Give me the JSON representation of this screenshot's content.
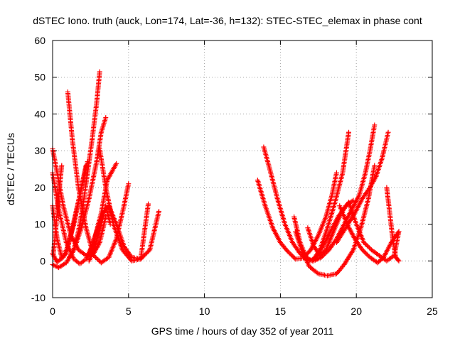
{
  "chart_data": {
    "type": "scatter",
    "title": "dSTEC Iono. truth (auck, Lon=174, Lat=-36, h=132): STEC-STEC_elemax in phase cont",
    "xlabel": "GPS time / hours of day 352 of year 2011",
    "ylabel": "dSTEC  / TECUs",
    "xlim": [
      0,
      25
    ],
    "ylim": [
      -10,
      60
    ],
    "xticks": [
      0,
      5,
      10,
      15,
      20,
      25
    ],
    "yticks": [
      -10,
      0,
      10,
      20,
      30,
      40,
      50,
      60
    ],
    "grid": true,
    "marker": "plus",
    "color": "#ff0000",
    "series": [
      {
        "points": [
          [
            0.0,
            30.5
          ],
          [
            0.3,
            24
          ],
          [
            0.7,
            15
          ],
          [
            1.2,
            7
          ],
          [
            1.7,
            3
          ],
          [
            2.2,
            1.5
          ],
          [
            2.7,
            2
          ],
          [
            3.1,
            5
          ],
          [
            3.5,
            12
          ]
        ]
      },
      {
        "points": [
          [
            0.0,
            24
          ],
          [
            0.4,
            14
          ],
          [
            0.9,
            5
          ],
          [
            1.4,
            0.5
          ],
          [
            1.8,
            -0.8
          ],
          [
            2.2,
            0.5
          ],
          [
            2.7,
            5
          ],
          [
            3.2,
            13
          ],
          [
            3.6,
            22
          ],
          [
            4.2,
            26.5
          ]
        ]
      },
      {
        "points": [
          [
            0.0,
            2
          ],
          [
            0.3,
            -0.3
          ],
          [
            0.7,
            1
          ],
          [
            1.0,
            4
          ],
          [
            1.4,
            10
          ],
          [
            1.8,
            18
          ],
          [
            2.3,
            27
          ]
        ]
      },
      {
        "points": [
          [
            0.0,
            -1
          ],
          [
            0.4,
            -1.8
          ],
          [
            0.9,
            -0.5
          ],
          [
            1.4,
            3
          ],
          [
            1.9,
            9
          ],
          [
            2.4,
            17
          ],
          [
            2.9,
            27
          ],
          [
            3.2,
            35
          ],
          [
            3.5,
            39
          ]
        ]
      },
      {
        "points": [
          [
            0.0,
            15
          ],
          [
            0.3,
            6
          ],
          [
            0.6,
            1
          ],
          [
            0.9,
            2
          ],
          [
            1.3,
            9
          ],
          [
            1.8,
            18
          ],
          [
            2.2,
            26
          ]
        ]
      },
      {
        "points": [
          [
            0.6,
            26
          ],
          [
            0.45,
            20
          ],
          [
            0.3,
            13
          ],
          [
            0.15,
            6
          ],
          [
            0.05,
            2
          ]
        ]
      },
      {
        "points": [
          [
            1.0,
            46
          ],
          [
            1.3,
            33
          ],
          [
            1.7,
            20
          ],
          [
            2.2,
            9
          ],
          [
            2.7,
            1.5
          ],
          [
            3.2,
            -0.5
          ],
          [
            3.7,
            1
          ],
          [
            4.2,
            6
          ],
          [
            4.7,
            15
          ],
          [
            5.0,
            21
          ]
        ]
      },
      {
        "points": [
          [
            3.1,
            51.5
          ],
          [
            2.9,
            43
          ],
          [
            2.6,
            33
          ],
          [
            2.3,
            24
          ],
          [
            2.0,
            15
          ],
          [
            1.7,
            8
          ],
          [
            1.4,
            3
          ],
          [
            1.1,
            1
          ]
        ]
      },
      {
        "points": [
          [
            3.1,
            30.5
          ],
          [
            3.5,
            20
          ],
          [
            4.0,
            10
          ],
          [
            4.6,
            3
          ],
          [
            5.2,
            0
          ],
          [
            5.8,
            0.5
          ],
          [
            6.4,
            3
          ],
          [
            7.0,
            13.5
          ]
        ]
      },
      {
        "points": [
          [
            2.5,
            3
          ],
          [
            2.9,
            8
          ],
          [
            3.3,
            13
          ],
          [
            3.7,
            15
          ],
          [
            4.2,
            10
          ],
          [
            4.7,
            4
          ],
          [
            5.2,
            1
          ],
          [
            5.8,
            0.5
          ],
          [
            6.3,
            15.5
          ]
        ]
      },
      {
        "points": [
          [
            2.4,
            0
          ],
          [
            2.8,
            4
          ],
          [
            3.2,
            10
          ],
          [
            3.5,
            15
          ],
          [
            3.8,
            10
          ]
        ]
      },
      {
        "points": [
          [
            13.5,
            22
          ],
          [
            14.0,
            15
          ],
          [
            14.5,
            9
          ],
          [
            15.0,
            5
          ],
          [
            15.5,
            2.5
          ],
          [
            16.0,
            0.5
          ],
          [
            16.5,
            0.8
          ],
          [
            17.0,
            3
          ],
          [
            17.5,
            7
          ],
          [
            18.0,
            12
          ],
          [
            18.4,
            18
          ],
          [
            18.7,
            24
          ]
        ]
      },
      {
        "points": [
          [
            13.9,
            31
          ],
          [
            14.3,
            25
          ],
          [
            14.8,
            17
          ],
          [
            15.3,
            10
          ],
          [
            15.8,
            5
          ],
          [
            16.3,
            2
          ],
          [
            16.8,
            0
          ],
          [
            17.3,
            0.5
          ],
          [
            17.8,
            4
          ],
          [
            18.3,
            8
          ],
          [
            18.8,
            12
          ],
          [
            19.3,
            15
          ],
          [
            19.8,
            16.5
          ]
        ]
      },
      {
        "points": [
          [
            16.0,
            8
          ],
          [
            16.4,
            3
          ],
          [
            16.9,
            -1.5
          ],
          [
            17.5,
            -3.5
          ],
          [
            18.1,
            -4
          ],
          [
            18.7,
            -3.5
          ],
          [
            19.2,
            -1
          ],
          [
            19.8,
            3
          ],
          [
            20.3,
            9
          ],
          [
            20.8,
            17
          ],
          [
            21.2,
            26
          ]
        ]
      },
      {
        "points": [
          [
            15.9,
            12
          ],
          [
            16.3,
            5
          ],
          [
            16.7,
            1
          ],
          [
            17.1,
            0
          ],
          [
            17.6,
            3
          ],
          [
            18.1,
            9
          ],
          [
            18.6,
            16
          ],
          [
            19.1,
            24
          ],
          [
            19.5,
            35
          ]
        ]
      },
      {
        "points": [
          [
            16.8,
            9
          ],
          [
            17.2,
            4
          ],
          [
            17.6,
            1.5
          ],
          [
            18.0,
            3
          ],
          [
            18.5,
            8
          ],
          [
            19.0,
            13
          ],
          [
            19.5,
            16
          ],
          [
            20.0,
            10
          ],
          [
            20.5,
            5
          ],
          [
            21.0,
            3
          ],
          [
            21.5,
            1.5
          ],
          [
            22.0,
            0
          ],
          [
            22.5,
            1.5
          ],
          [
            22.8,
            8
          ]
        ]
      },
      {
        "points": [
          [
            18.9,
            15
          ],
          [
            19.4,
            10
          ],
          [
            19.9,
            6
          ],
          [
            20.4,
            3
          ],
          [
            20.9,
            1
          ],
          [
            21.4,
            -0.5
          ],
          [
            21.8,
            1
          ],
          [
            22.3,
            5
          ],
          [
            22.8,
            8
          ]
        ]
      },
      {
        "points": [
          [
            17.2,
            0
          ],
          [
            17.7,
            1
          ],
          [
            18.2,
            3
          ],
          [
            18.7,
            6
          ],
          [
            19.2,
            10
          ],
          [
            19.7,
            14
          ],
          [
            20.2,
            18
          ],
          [
            20.6,
            24
          ],
          [
            20.9,
            30
          ],
          [
            21.2,
            37
          ]
        ]
      },
      {
        "points": [
          [
            18.7,
            5
          ],
          [
            19.3,
            9
          ],
          [
            19.9,
            13
          ],
          [
            20.4,
            17
          ],
          [
            20.9,
            20
          ],
          [
            21.3,
            23
          ],
          [
            21.7,
            28
          ],
          [
            22.1,
            35
          ]
        ]
      },
      {
        "points": [
          [
            22.0,
            20
          ],
          [
            22.2,
            13
          ],
          [
            22.4,
            6
          ],
          [
            22.6,
            1
          ],
          [
            22.8,
            0
          ]
        ]
      }
    ]
  }
}
